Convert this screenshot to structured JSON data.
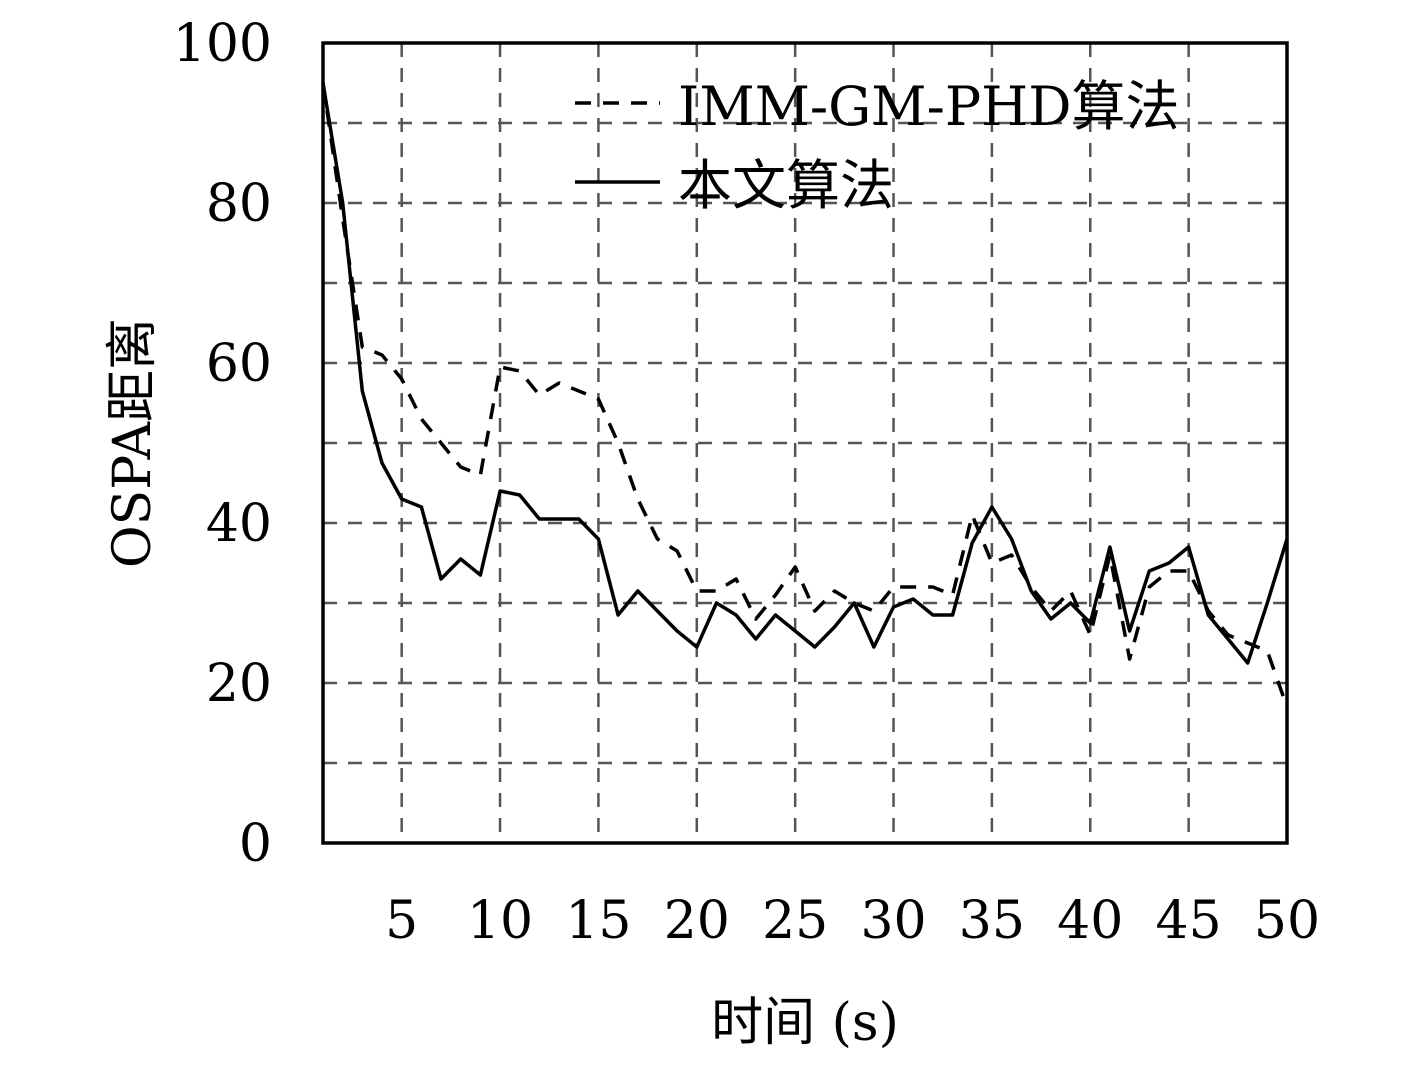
{
  "chart_data": {
    "type": "line",
    "title": "",
    "xlabel": "时间 (s)",
    "ylabel": "OSPA距离",
    "xlim": [
      1,
      50
    ],
    "ylim": [
      0,
      100
    ],
    "xticks": [
      5,
      10,
      15,
      20,
      25,
      30,
      35,
      40,
      45,
      50
    ],
    "yticks": [
      0,
      20,
      40,
      60,
      80,
      100
    ],
    "grid": true,
    "grid_x": [
      5,
      10,
      15,
      20,
      25,
      30,
      35,
      40,
      45
    ],
    "grid_y": [
      10,
      20,
      30,
      40,
      50,
      60,
      70,
      80,
      90
    ],
    "legend_position": "top-right",
    "x": [
      1,
      2,
      3,
      4,
      5,
      6,
      7,
      8,
      9,
      10,
      11,
      12,
      13,
      14,
      15,
      16,
      17,
      18,
      19,
      20,
      21,
      22,
      23,
      24,
      25,
      26,
      27,
      28,
      29,
      30,
      31,
      32,
      33,
      34,
      35,
      36,
      37,
      38,
      39,
      40,
      41,
      42,
      43,
      44,
      45,
      46,
      47,
      48,
      49,
      50
    ],
    "series": [
      {
        "name": "IMM-GM-PHD算法",
        "style": "dashed",
        "color": "#000000",
        "values": [
          95,
          78,
          62,
          61,
          58,
          53,
          50,
          47,
          46,
          59.5,
          59,
          56,
          57.5,
          56.5,
          55.5,
          50,
          43,
          38,
          36.5,
          31.5,
          31.5,
          33,
          28,
          31,
          34.5,
          29,
          31.5,
          30,
          29,
          32,
          32,
          32,
          31,
          41,
          35,
          36,
          32,
          29,
          31.5,
          26,
          36,
          23,
          32,
          34,
          34,
          29,
          26,
          25,
          24,
          17
        ]
      },
      {
        "name": "本文算法",
        "style": "solid",
        "color": "#000000",
        "values": [
          95,
          80,
          56.5,
          47.5,
          43,
          42,
          33,
          35.5,
          33.5,
          44,
          43.5,
          40.5,
          40.5,
          40.5,
          38,
          28.5,
          31.5,
          29,
          26.5,
          24.5,
          30,
          28.5,
          25.5,
          28.5,
          26.5,
          24.5,
          27,
          30,
          24.5,
          29.5,
          30.5,
          28.5,
          28.5,
          37.5,
          42,
          38,
          31.5,
          28,
          30,
          27.5,
          37,
          26.5,
          34,
          35,
          37,
          28.5,
          25.5,
          22.5,
          30,
          38
        ]
      }
    ]
  }
}
